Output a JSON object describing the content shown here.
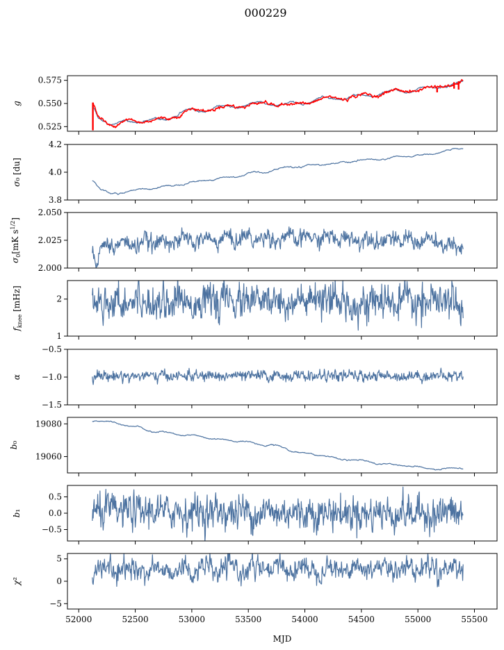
{
  "figure": {
    "title": "000229"
  },
  "chart_data": {
    "type": "line",
    "title": "000229",
    "xlabel": "MJD",
    "xlim": [
      51900,
      55700
    ],
    "x_ticks": [
      52000,
      52500,
      53000,
      53500,
      54000,
      54500,
      55000,
      55500
    ],
    "x_tick_labels": [
      "52000",
      "52500",
      "53000",
      "53500",
      "54000",
      "54500",
      "55000",
      "55500"
    ],
    "series_color": "#4c72a0",
    "highlight_color": "#ff0000",
    "x_range_data": [
      52120,
      55400
    ],
    "panels": [
      {
        "ylabel": "g",
        "ylim": [
          0.52,
          0.58
        ],
        "yticks": [
          0.525,
          0.55,
          0.575
        ],
        "ytick_labels": [
          "0.525",
          "0.550",
          "0.575"
        ],
        "series": [
          {
            "name": "",
            "color": "#4c72a0",
            "style": "smooth-trend",
            "anchors": [
              [
                52120,
                0.546
              ],
              [
                52180,
                0.535
              ],
              [
                52300,
                0.527
              ],
              [
                52450,
                0.531
              ],
              [
                52700,
                0.532
              ],
              [
                53000,
                0.542
              ],
              [
                53300,
                0.546
              ],
              [
                53600,
                0.55
              ],
              [
                53900,
                0.549
              ],
              [
                54200,
                0.555
              ],
              [
                54500,
                0.558
              ],
              [
                54800,
                0.563
              ],
              [
                55100,
                0.566
              ],
              [
                55250,
                0.57
              ],
              [
                55400,
                0.572
              ]
            ],
            "noise": 0.0008,
            "wiggle_amp": 0.002,
            "wiggle_period": 300
          },
          {
            "name": "",
            "color": "#ff0000",
            "style": "smooth-trend",
            "anchors": [
              [
                52120,
                0.548
              ],
              [
                52180,
                0.535
              ],
              [
                52300,
                0.527
              ],
              [
                52450,
                0.531
              ],
              [
                52700,
                0.532
              ],
              [
                53000,
                0.542
              ],
              [
                53300,
                0.546
              ],
              [
                53600,
                0.55
              ],
              [
                53900,
                0.549
              ],
              [
                54200,
                0.555
              ],
              [
                54500,
                0.558
              ],
              [
                54800,
                0.563
              ],
              [
                55100,
                0.566
              ],
              [
                55250,
                0.57
              ],
              [
                55400,
                0.572
              ]
            ],
            "noise": 0.0015,
            "wiggle_amp": 0.002,
            "wiggle_period": 300,
            "spikes": [
              [
                52125,
                0.521,
                0.551
              ],
              [
                55320,
                0.566,
                0.573
              ],
              [
                55360,
                0.565,
                0.574
              ],
              [
                55170,
                0.562,
                0.567
              ]
            ]
          }
        ]
      },
      {
        "ylabel": "σ₀ [du]",
        "ylim": [
          3.8,
          4.2
        ],
        "yticks": [
          3.8,
          4.0,
          4.2
        ],
        "ytick_labels": [
          "3.8",
          "4.0",
          "4.2"
        ],
        "series": [
          {
            "name": "",
            "color": "#4c72a0",
            "style": "smooth-trend",
            "anchors": [
              [
                52120,
                3.94
              ],
              [
                52200,
                3.88
              ],
              [
                52300,
                3.84
              ],
              [
                52500,
                3.87
              ],
              [
                52800,
                3.9
              ],
              [
                53000,
                3.93
              ],
              [
                53300,
                3.96
              ],
              [
                53600,
                4.0
              ],
              [
                53900,
                4.04
              ],
              [
                54200,
                4.06
              ],
              [
                54600,
                4.09
              ],
              [
                55000,
                4.12
              ],
              [
                55400,
                4.17
              ]
            ],
            "noise": 0.004,
            "wiggle_amp": 0.005,
            "wiggle_period": 250
          }
        ]
      },
      {
        "ylabel": "σ₀[mK s^1/2]",
        "ylim": [
          2.0,
          2.05
        ],
        "yticks": [
          2.0,
          2.025,
          2.05
        ],
        "ytick_labels": [
          "2.000",
          "2.025",
          "2.050"
        ],
        "series": [
          {
            "name": "",
            "color": "#4c72a0",
            "style": "noisy",
            "anchors": [
              [
                52120,
                2.02
              ],
              [
                52150,
                2.01
              ],
              [
                52250,
                2.021
              ],
              [
                53000,
                2.025
              ],
              [
                53500,
                2.027
              ],
              [
                54200,
                2.027
              ],
              [
                55000,
                2.025
              ],
              [
                55400,
                2.018
              ]
            ],
            "noise": 0.0035,
            "wiggle_amp": 0.003,
            "wiggle_period": 180
          }
        ]
      },
      {
        "ylabel": "f_knee [mHz]",
        "ylim": [
          1.0,
          2.5
        ],
        "yticks": [
          1,
          2
        ],
        "ytick_labels": [
          "1",
          "2"
        ],
        "series": [
          {
            "name": "",
            "color": "#4c72a0",
            "style": "noisy",
            "anchors": [
              [
                52120,
                1.95
              ],
              [
                55400,
                1.9
              ]
            ],
            "noise": 0.22,
            "wiggle_amp": 0.05,
            "wiggle_period": 200
          }
        ]
      },
      {
        "ylabel": "α",
        "ylim": [
          -1.5,
          -0.5
        ],
        "yticks": [
          -1.5,
          -1.0,
          -0.5
        ],
        "ytick_labels": [
          "−1.5",
          "−1.0",
          "−0.5"
        ],
        "series": [
          {
            "name": "",
            "color": "#4c72a0",
            "style": "noisy",
            "anchors": [
              [
                52120,
                -0.98
              ],
              [
                55400,
                -0.98
              ]
            ],
            "noise": 0.045,
            "wiggle_amp": 0.01,
            "wiggle_period": 200
          }
        ]
      },
      {
        "ylabel": "b₀",
        "ylim": [
          19050,
          19084
        ],
        "yticks": [
          19060,
          19080
        ],
        "ytick_labels": [
          "19060",
          "19080"
        ],
        "series": [
          {
            "name": "",
            "color": "#4c72a0",
            "style": "smooth-trend",
            "anchors": [
              [
                52120,
                19082
              ],
              [
                52300,
                19081
              ],
              [
                52500,
                19078
              ],
              [
                52700,
                19075
              ],
              [
                53000,
                19073
              ],
              [
                53300,
                19070
              ],
              [
                53700,
                19067
              ],
              [
                54000,
                19062
              ],
              [
                54400,
                19058
              ],
              [
                54800,
                19055
              ],
              [
                55100,
                19053
              ],
              [
                55200,
                19052
              ],
              [
                55400,
                19053
              ]
            ],
            "noise": 0.3,
            "wiggle_amp": 0.5,
            "wiggle_period": 250
          }
        ]
      },
      {
        "ylabel": "b₁",
        "ylim": [
          -0.85,
          0.85
        ],
        "yticks": [
          -0.5,
          0.0,
          0.5
        ],
        "ytick_labels": [
          "−0.5",
          "0.0",
          "0.5"
        ],
        "series": [
          {
            "name": "",
            "color": "#4c72a0",
            "style": "noisy",
            "anchors": [
              [
                52120,
                0.05
              ],
              [
                55400,
                0.0
              ]
            ],
            "noise": 0.25,
            "wiggle_amp": 0.05,
            "wiggle_period": 200
          }
        ]
      },
      {
        "ylabel": "χ²",
        "ylim": [
          -6.2,
          6.2
        ],
        "yticks": [
          -5,
          0,
          5
        ],
        "ytick_labels": [
          "−5",
          "0",
          "5"
        ],
        "series": [
          {
            "name": "",
            "color": "#4c72a0",
            "style": "noisy",
            "anchors": [
              [
                52120,
                2.5
              ],
              [
                55400,
                3.0
              ]
            ],
            "noise": 1.1,
            "wiggle_amp": 0.8,
            "wiggle_period": 220
          }
        ]
      }
    ]
  }
}
